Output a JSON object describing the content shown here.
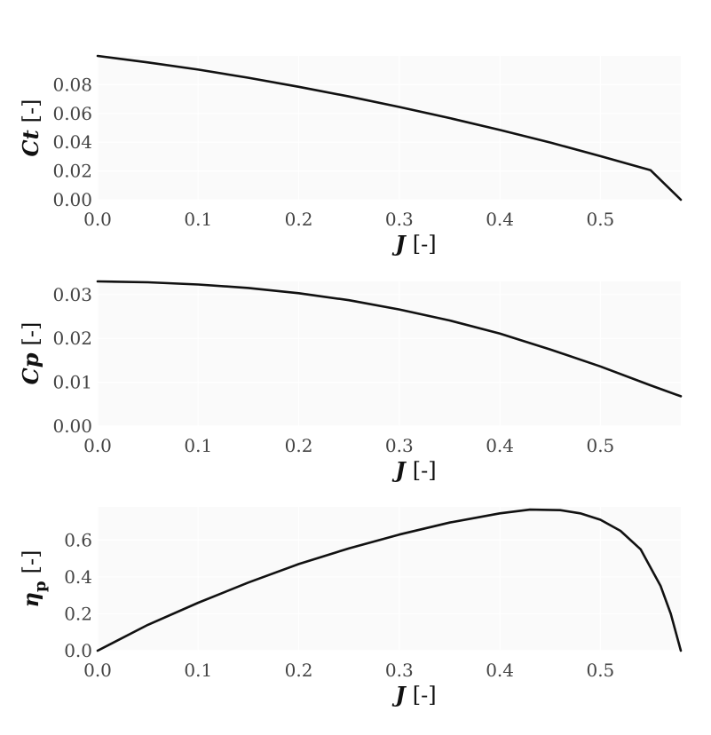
{
  "chart_data": [
    {
      "type": "line",
      "xlabel_var": "J",
      "xlabel_unit": "[-]",
      "ylabel_var": "Ct",
      "ylabel_sub": "",
      "ylabel_unit": "[-]",
      "xlim": [
        0,
        0.58
      ],
      "ylim": [
        0,
        0.1
      ],
      "xticks": [
        "0.0",
        "0.1",
        "0.2",
        "0.3",
        "0.4",
        "0.5"
      ],
      "yticks": [
        "0.00",
        "0.02",
        "0.04",
        "0.06",
        "0.08"
      ],
      "grid": true,
      "series": [
        {
          "x": [
            0,
            0.05,
            0.1,
            0.15,
            0.2,
            0.25,
            0.3,
            0.35,
            0.4,
            0.45,
            0.5,
            0.55,
            0.58
          ],
          "y": [
            0.1,
            0.0955,
            0.0905,
            0.0848,
            0.0785,
            0.0718,
            0.0645,
            0.0568,
            0.0485,
            0.0398,
            0.0303,
            0.0205,
            0.0
          ]
        }
      ]
    },
    {
      "type": "line",
      "xlabel_var": "J",
      "xlabel_unit": "[-]",
      "ylabel_var": "Cp",
      "ylabel_sub": "",
      "ylabel_unit": "[-]",
      "xlim": [
        0,
        0.58
      ],
      "ylim": [
        0,
        0.033
      ],
      "xticks": [
        "0.0",
        "0.1",
        "0.2",
        "0.3",
        "0.4",
        "0.5"
      ],
      "yticks": [
        "0.00",
        "0.01",
        "0.02",
        "0.03"
      ],
      "grid": true,
      "series": [
        {
          "x": [
            0,
            0.05,
            0.1,
            0.15,
            0.2,
            0.25,
            0.3,
            0.35,
            0.4,
            0.45,
            0.5,
            0.55,
            0.58
          ],
          "y": [
            0.033,
            0.0328,
            0.0323,
            0.0315,
            0.0303,
            0.0287,
            0.0266,
            0.0241,
            0.0211,
            0.0175,
            0.0136,
            0.0093,
            0.0068
          ]
        }
      ]
    },
    {
      "type": "line",
      "xlabel_var": "J",
      "xlabel_unit": "[-]",
      "ylabel_var": "η",
      "ylabel_sub": "p",
      "ylabel_unit": "[-]",
      "xlim": [
        0,
        0.58
      ],
      "ylim": [
        0,
        0.78
      ],
      "xticks": [
        "0.0",
        "0.1",
        "0.2",
        "0.3",
        "0.4",
        "0.5"
      ],
      "yticks": [
        "0.0",
        "0.2",
        "0.4",
        "0.6"
      ],
      "grid": true,
      "series": [
        {
          "x": [
            0,
            0.05,
            0.1,
            0.15,
            0.2,
            0.25,
            0.3,
            0.35,
            0.4,
            0.43,
            0.46,
            0.48,
            0.5,
            0.52,
            0.54,
            0.56,
            0.57,
            0.58
          ],
          "y": [
            0,
            0.14,
            0.26,
            0.37,
            0.47,
            0.555,
            0.63,
            0.695,
            0.745,
            0.765,
            0.762,
            0.745,
            0.71,
            0.65,
            0.55,
            0.35,
            0.2,
            0.0
          ]
        }
      ]
    }
  ]
}
